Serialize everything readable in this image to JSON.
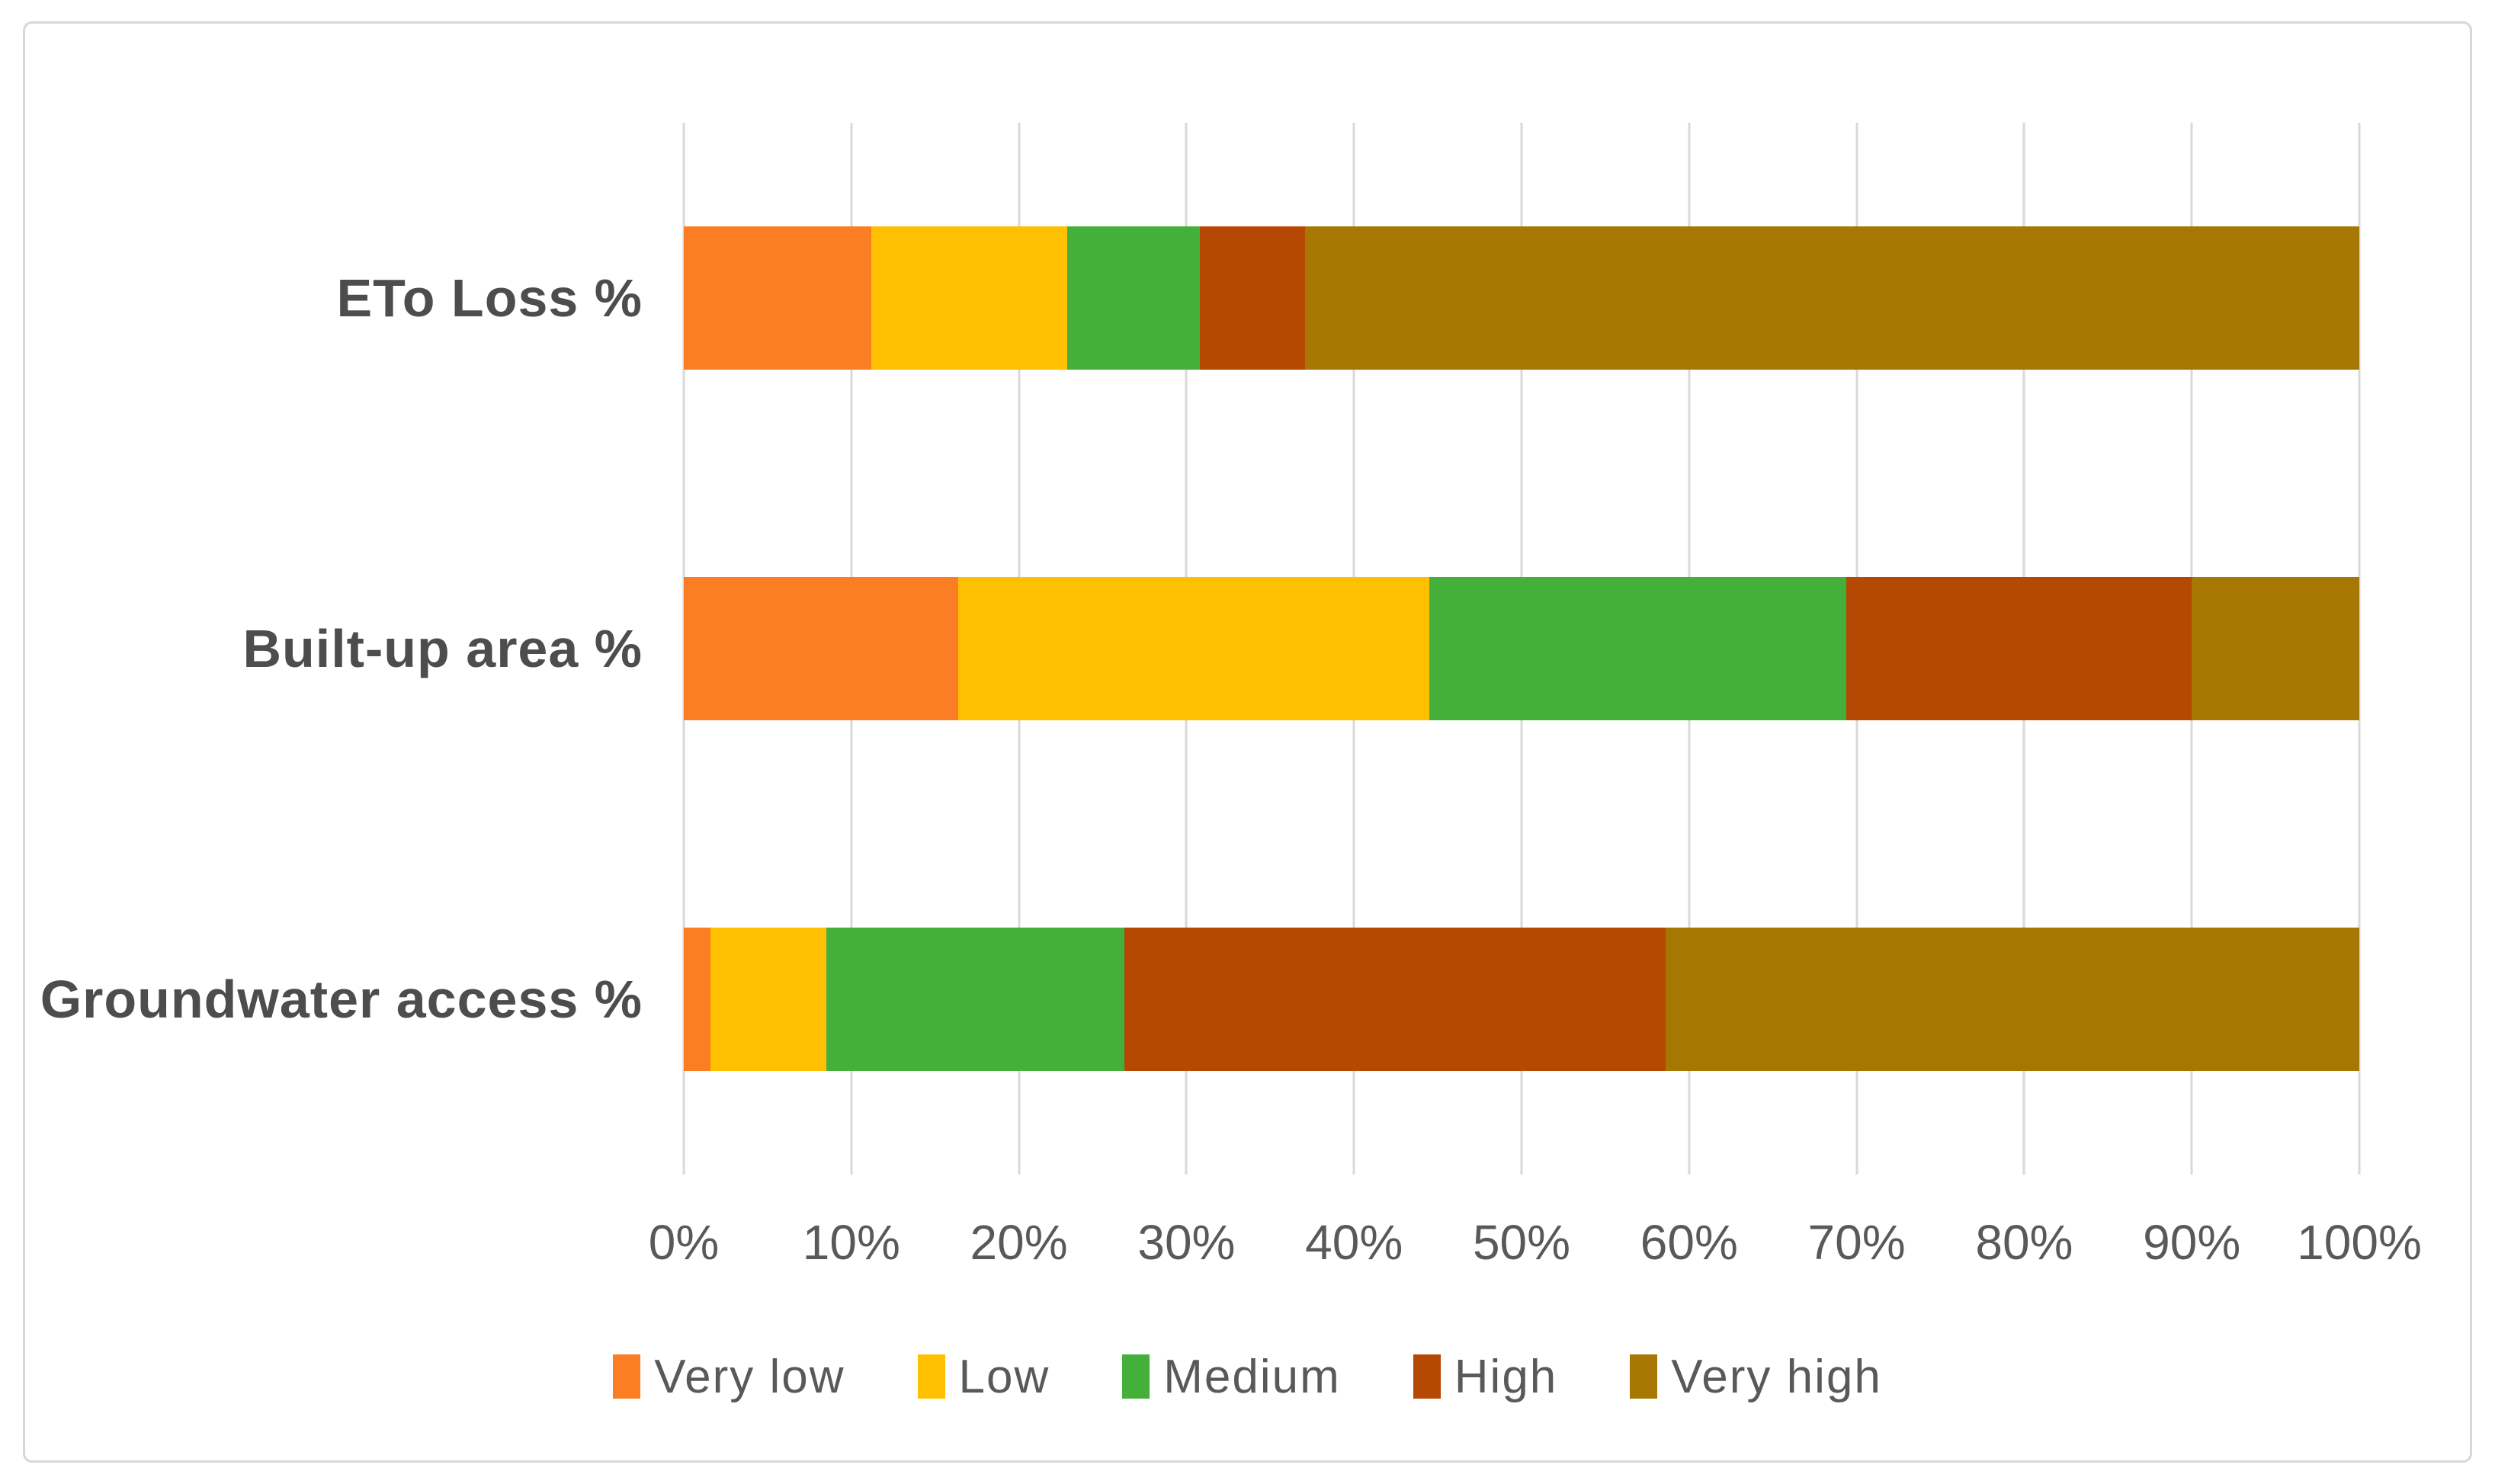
{
  "chart_data": {
    "type": "bar",
    "orientation": "horizontal",
    "stacked": true,
    "stack_unit": "percent",
    "title": "",
    "categories": [
      "ETo Loss %",
      "Built-up area %",
      "Groundwater access %"
    ],
    "series": [
      {
        "name": "Very low",
        "color": "#FC7E24",
        "values": [
          11.2,
          16.4,
          1.6
        ]
      },
      {
        "name": "Low",
        "color": "#FFC001",
        "values": [
          11.7,
          28.1,
          6.9
        ]
      },
      {
        "name": "Medium",
        "color": "#45AF3B",
        "values": [
          7.9,
          24.9,
          17.8
        ]
      },
      {
        "name": "High",
        "color": "#B54802",
        "values": [
          6.3,
          20.6,
          32.3
        ]
      },
      {
        "name": "Very high",
        "color": "#A67702",
        "values": [
          62.9,
          10.0,
          41.4
        ]
      }
    ],
    "x_axis": {
      "min": 0,
      "max": 100,
      "tick_step": 10,
      "tick_labels": [
        "0%",
        "10%",
        "20%",
        "30%",
        "40%",
        "50%",
        "60%",
        "70%",
        "80%",
        "90%",
        "100%"
      ]
    },
    "y_axis": {
      "labels": [
        "ETo Loss %",
        "Built-up area %",
        "Groundwater access %"
      ]
    },
    "grid": true,
    "gridline_color": "#D9D9D9",
    "legend_position": "bottom",
    "legend": [
      "Very low",
      "Low",
      "Medium",
      "High",
      "Very high"
    ],
    "text_color": "#595959",
    "frame_border_color": "#D8D6D6",
    "background_color": "#FFFFFF"
  }
}
